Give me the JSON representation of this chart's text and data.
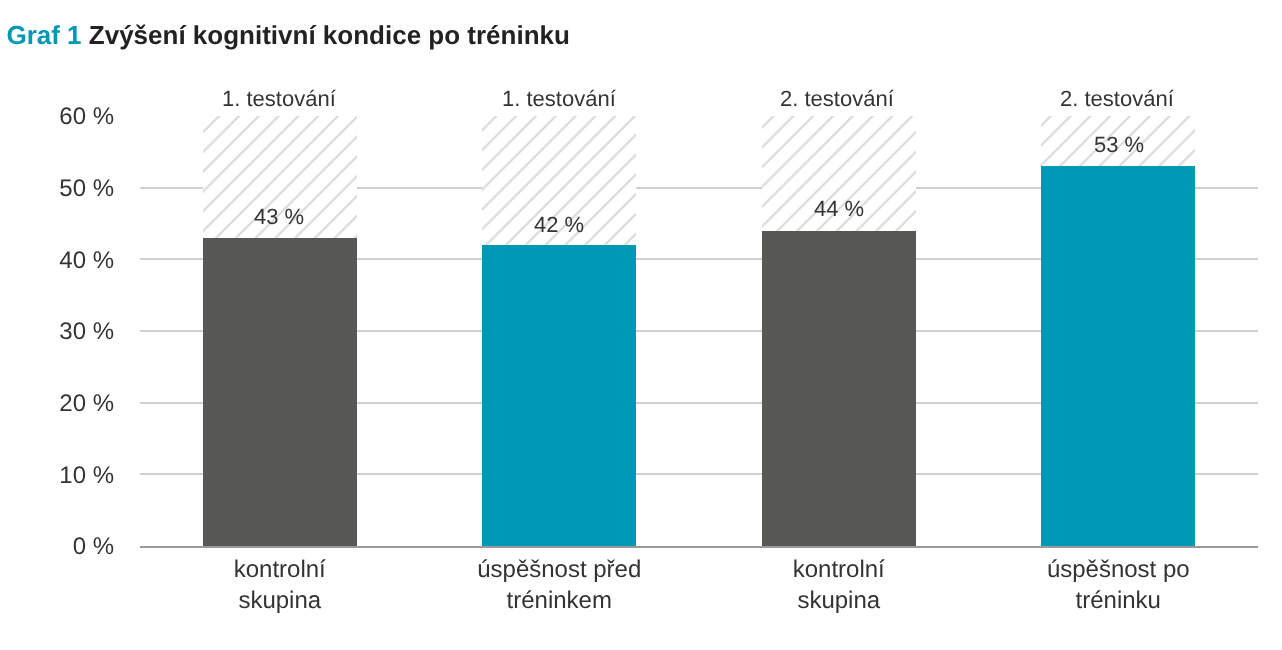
{
  "chart_data": {
    "type": "bar",
    "title": "Graf 1 Zvýšení kognitivní kondice po tréninku",
    "stacked": true,
    "categories": [
      "kontrolní skupina",
      "úspěšnost před tréninkem",
      "kontrolní skupina",
      "úspěšnost po tréninku"
    ],
    "series": [
      {
        "type": "bar",
        "colors": [
          "#575756",
          "#0099b5",
          "#575756",
          "#0099b5"
        ],
        "values": [
          43,
          42,
          44,
          53
        ],
        "value_labels": [
          "43 %",
          "42 %",
          "44 %",
          "53 %"
        ]
      },
      {
        "type": "bar",
        "color": "#d9d9d9",
        "values": [
          17,
          18,
          16,
          7
        ]
      }
    ],
    "annotations": [
      "1. testování",
      "1. testování",
      "2. testování",
      "2. testování"
    ],
    "ylim": [
      0,
      60
    ],
    "yticks": [
      {
        "value": 0,
        "label": "0 %"
      },
      {
        "value": 10,
        "label": "10 %"
      },
      {
        "value": 20,
        "label": "20 %"
      },
      {
        "value": 30,
        "label": "30 %"
      },
      {
        "value": 40,
        "label": "40 %"
      },
      {
        "value": 50,
        "label": "50 %"
      },
      {
        "value": 60,
        "label": "60 %"
      }
    ],
    "grid": "y"
  }
}
